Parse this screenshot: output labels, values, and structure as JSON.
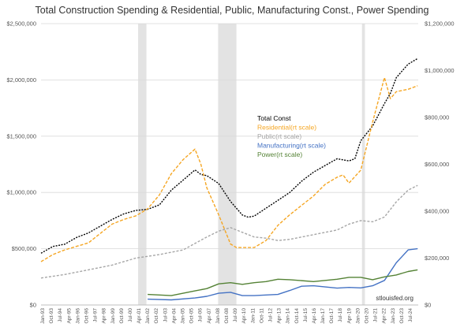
{
  "chart_data": {
    "type": "line",
    "title": "Total Construction Spending & Residential, Public, Manufacturing Const., Power Spending",
    "watermark": "stlouisfed.org",
    "y_left": {
      "ylim": [
        0,
        2500000
      ],
      "ticks": [
        "$0",
        "$500,000",
        "$1,000,000",
        "$1,500,000",
        "$2,000,000",
        "$2,500,000"
      ]
    },
    "y_right": {
      "ylim": [
        0,
        1200000
      ],
      "ticks": [
        "$0",
        "$200,000",
        "$400,000",
        "$600,000",
        "$800,000",
        "$1,000,000",
        "$1,200,000"
      ]
    },
    "x_ticks": [
      "Jan-93",
      "Oct-93",
      "Jul-94",
      "Apr-95",
      "Jan-96",
      "Oct-96",
      "Jul-97",
      "Apr-98",
      "Jan-99",
      "Oct-99",
      "Jul-00",
      "Apr-01",
      "Jan-02",
      "Oct-02",
      "Jul-03",
      "Apr-04",
      "Jan-05",
      "Oct-05",
      "Jul-06",
      "Apr-07",
      "Jan-08",
      "Oct-08",
      "Jul-09",
      "Apr-10",
      "Jan-11",
      "Oct-11",
      "Jul-12",
      "Apr-13",
      "Jan-14",
      "Oct-14",
      "Jul-15",
      "Apr-16",
      "Jan-17",
      "Oct-17",
      "Jul-18",
      "Apr-19",
      "Jan-20",
      "Oct-20",
      "Jul-21",
      "Apr-22",
      "Jan-23",
      "Oct-23",
      "Jul-24"
    ],
    "x_range": [
      1993.0,
      2024.85
    ],
    "recessions": [
      [
        2001.2,
        2001.9
      ],
      [
        2007.95,
        2009.5
      ],
      [
        2020.1,
        2020.35
      ]
    ],
    "grid": "horizontal",
    "legend_position": "center-right",
    "series": [
      {
        "name": "Total Const",
        "axis": "left",
        "color": "#000000",
        "dash": "2,1.5",
        "x": [
          1993,
          1994,
          1995,
          1996,
          1997,
          1998,
          1999,
          2000,
          2001,
          2002,
          2003,
          2004,
          2005,
          2006,
          2006.5,
          2007,
          2008,
          2009,
          2010,
          2010.5,
          2011,
          2012,
          2013,
          2014,
          2015,
          2016,
          2017,
          2018,
          2019,
          2019.5,
          2020,
          2021,
          2022,
          2022.5,
          2023,
          2024,
          2024.8
        ],
        "y": [
          460000,
          520000,
          540000,
          600000,
          640000,
          700000,
          760000,
          810000,
          840000,
          850000,
          890000,
          1020000,
          1110000,
          1200000,
          1160000,
          1150000,
          1080000,
          920000,
          800000,
          780000,
          790000,
          860000,
          930000,
          1000000,
          1100000,
          1180000,
          1240000,
          1300000,
          1280000,
          1300000,
          1460000,
          1590000,
          1790000,
          1880000,
          2020000,
          2140000,
          2190000
        ]
      },
      {
        "name": "Residential(rt scale)",
        "axis": "right",
        "color": "#f5a623",
        "dash": "4,2",
        "x": [
          1993,
          1994,
          1995,
          1996,
          1997,
          1998,
          1999,
          2000,
          2001,
          2002,
          2003,
          2004,
          2005,
          2006,
          2006.5,
          2007,
          2008,
          2009,
          2009.5,
          2010,
          2011,
          2012,
          2013,
          2014,
          2015,
          2016,
          2017,
          2018,
          2018.5,
          2019,
          2020,
          2021,
          2022,
          2022.5,
          2023,
          2024,
          2024.8
        ],
        "y": [
          185000,
          215000,
          235000,
          250000,
          265000,
          305000,
          345000,
          365000,
          380000,
          410000,
          470000,
          560000,
          620000,
          665000,
          600000,
          500000,
          385000,
          260000,
          245000,
          245000,
          245000,
          275000,
          340000,
          385000,
          425000,
          465000,
          515000,
          545000,
          555000,
          520000,
          575000,
          780000,
          970000,
          880000,
          910000,
          920000,
          935000
        ]
      },
      {
        "name": "Public(rt scale)",
        "axis": "right",
        "color": "#a6a6a6",
        "dash": "3,2",
        "x": [
          1993,
          1995,
          1997,
          1999,
          2001,
          2003,
          2005,
          2007,
          2008,
          2009,
          2010,
          2011,
          2012,
          2013,
          2014,
          2016,
          2018,
          2019,
          2020,
          2021,
          2022,
          2023,
          2024,
          2024.8
        ],
        "y": [
          115000,
          130000,
          150000,
          170000,
          200000,
          215000,
          235000,
          290000,
          315000,
          330000,
          310000,
          290000,
          285000,
          275000,
          280000,
          300000,
          320000,
          345000,
          360000,
          355000,
          375000,
          440000,
          490000,
          510000
        ]
      },
      {
        "name": "Manufacturing(rt scale)",
        "axis": "right",
        "color": "#4472c4",
        "dash": "",
        "x": [
          2002,
          2004,
          2006,
          2007,
          2008,
          2009,
          2010,
          2011,
          2013,
          2014,
          2015,
          2016,
          2018,
          2019,
          2020,
          2021,
          2022,
          2023,
          2024,
          2024.8
        ],
        "y": [
          25000,
          22000,
          30000,
          37000,
          50000,
          54000,
          40000,
          40000,
          45000,
          62000,
          80000,
          82000,
          72000,
          75000,
          73000,
          82000,
          105000,
          180000,
          235000,
          240000
        ]
      },
      {
        "name": "Power(rt scale)",
        "axis": "right",
        "color": "#548235",
        "dash": "",
        "x": [
          2002,
          2004,
          2006,
          2007,
          2008,
          2009,
          2010,
          2011,
          2012,
          2013,
          2014,
          2016,
          2018,
          2019,
          2020,
          2021,
          2022,
          2023,
          2024,
          2024.8
        ],
        "y": [
          45000,
          40000,
          60000,
          70000,
          90000,
          95000,
          88000,
          95000,
          100000,
          110000,
          108000,
          100000,
          110000,
          118000,
          118000,
          108000,
          120000,
          128000,
          143000,
          150000
        ]
      }
    ]
  }
}
